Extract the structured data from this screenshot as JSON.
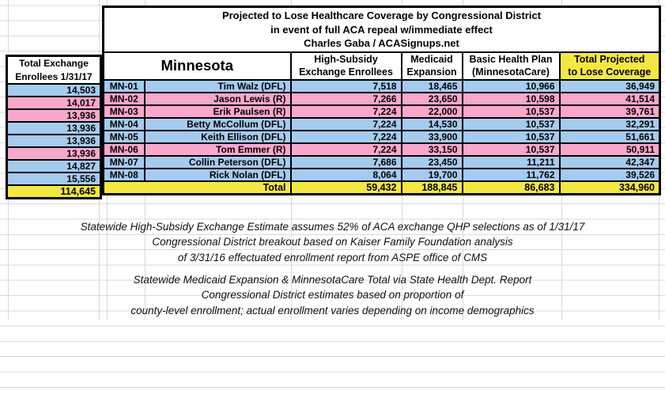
{
  "title": {
    "line1": "Projected to Lose Healthcare Coverage by Congressional District",
    "line2": "in event of full ACA repeal w/immediate effect",
    "line3": "Charles Gaba / ACASignups.net"
  },
  "left_table": {
    "header_line1": "Total Exchange",
    "header_line2": "Enrollees 1/31/17",
    "values": [
      "14,503",
      "14,017",
      "13,936",
      "13,936",
      "13,936",
      "13,936",
      "14,827",
      "15,556"
    ],
    "total": "114,645"
  },
  "main_table": {
    "state_header": "Minnesota",
    "columns": [
      {
        "line1": "High-Subsidy",
        "line2": "Exchange Enrollees"
      },
      {
        "line1": "Medicaid",
        "line2": "Expansion"
      },
      {
        "line1": "Basic Health Plan",
        "line2": "(MinnesotaCare)"
      },
      {
        "line1": "Total Projected",
        "line2": "to Lose Coverage"
      }
    ],
    "rows": [
      {
        "district": "MN-01",
        "rep": "Tim Walz (DFL)",
        "party": "DFL",
        "values": [
          "7,518",
          "18,465",
          "10,966",
          "36,949"
        ]
      },
      {
        "district": "MN-02",
        "rep": "Jason Lewis (R)",
        "party": "R",
        "values": [
          "7,266",
          "23,650",
          "10,598",
          "41,514"
        ]
      },
      {
        "district": "MN-03",
        "rep": "Erik Paulsen (R)",
        "party": "R",
        "values": [
          "7,224",
          "22,000",
          "10,537",
          "39,761"
        ]
      },
      {
        "district": "MN-04",
        "rep": "Betty McCollum (DFL)",
        "party": "DFL",
        "values": [
          "7,224",
          "14,530",
          "10,537",
          "32,291"
        ]
      },
      {
        "district": "MN-05",
        "rep": "Keith Ellison (DFL)",
        "party": "DFL",
        "values": [
          "7,224",
          "33,900",
          "10,537",
          "51,661"
        ]
      },
      {
        "district": "MN-06",
        "rep": "Tom Emmer (R)",
        "party": "R",
        "values": [
          "7,224",
          "33,150",
          "10,537",
          "50,911"
        ]
      },
      {
        "district": "MN-07",
        "rep": "Collin Peterson (DFL)",
        "party": "DFL",
        "values": [
          "7,686",
          "23,450",
          "11,211",
          "42,347"
        ]
      },
      {
        "district": "MN-08",
        "rep": "Rick Nolan (DFL)",
        "party": "DFL",
        "values": [
          "8,064",
          "19,700",
          "11,762",
          "39,526"
        ]
      }
    ],
    "total_label": "Total",
    "totals": [
      "59,432",
      "188,845",
      "86,683",
      "334,960"
    ]
  },
  "notes": [
    {
      "lines": [
        "Statewide High-Subsidy Exchange Estimate assumes 52% of ACA exchange QHP selections as of 1/31/17",
        "Congressional District breakout based on Kaiser Family Foundation analysis",
        "of 3/31/16 effectuated enrollment report from ASPE office of CMS"
      ]
    },
    {
      "lines": [
        "Statewide Medicaid Expansion & MinnesotaCare Total via State Health Dept. Report",
        "Congressional District estimates based on proportion of",
        "county-level enrollment; actual enrollment varies depending on income demographics"
      ]
    }
  ],
  "colors": {
    "dfl_row_blue": "#A5CBEE",
    "republican_row_pink": "#F9A7CC",
    "total_yellow": "#F3E841"
  }
}
